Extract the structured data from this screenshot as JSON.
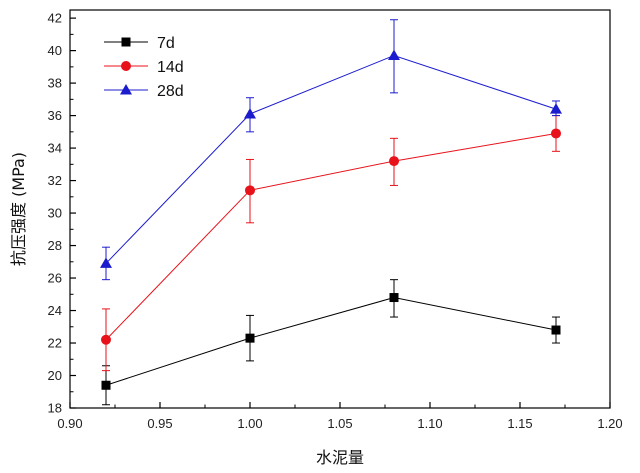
{
  "chart_data": {
    "type": "line",
    "title": "",
    "xlabel": "水泥量",
    "ylabel": "抗压强度 (MPa)",
    "xlim": [
      0.9,
      1.2
    ],
    "ylim": [
      18,
      42.5
    ],
    "x_ticks": [
      0.9,
      0.95,
      1.0,
      1.05,
      1.1,
      1.15,
      1.2
    ],
    "x_tick_labels": [
      "0.90",
      "0.95",
      "1.00",
      "1.05",
      "1.10",
      "1.15",
      "1.20"
    ],
    "y_ticks": [
      18,
      20,
      22,
      24,
      26,
      28,
      30,
      32,
      34,
      36,
      38,
      40,
      42
    ],
    "y_tick_labels": [
      "18",
      "20",
      "22",
      "24",
      "26",
      "28",
      "30",
      "32",
      "34",
      "36",
      "38",
      "40",
      "42"
    ],
    "x": [
      0.92,
      1.0,
      1.08,
      1.17
    ],
    "series": [
      {
        "name": "7d",
        "color": "#000000",
        "marker": "square",
        "values": [
          19.4,
          22.3,
          24.8,
          22.8
        ],
        "error": [
          [
            18.2,
            20.6
          ],
          [
            20.9,
            23.7
          ],
          [
            23.6,
            25.9
          ],
          [
            22.0,
            23.6
          ]
        ]
      },
      {
        "name": "14d",
        "color": "#e8121a",
        "marker": "circle",
        "values": [
          22.2,
          31.4,
          33.2,
          34.9
        ],
        "error": [
          [
            20.3,
            24.1
          ],
          [
            29.4,
            33.3
          ],
          [
            31.7,
            34.6
          ],
          [
            33.8,
            36.0
          ]
        ]
      },
      {
        "name": "28d",
        "color": "#1c1ccf",
        "marker": "triangle",
        "values": [
          26.9,
          36.1,
          39.7,
          36.4
        ],
        "error": [
          [
            25.9,
            27.9
          ],
          [
            35.0,
            37.1
          ],
          [
            37.4,
            41.9
          ],
          [
            36.0,
            36.9
          ]
        ]
      }
    ],
    "grid": false,
    "legend_position": "top-left"
  }
}
